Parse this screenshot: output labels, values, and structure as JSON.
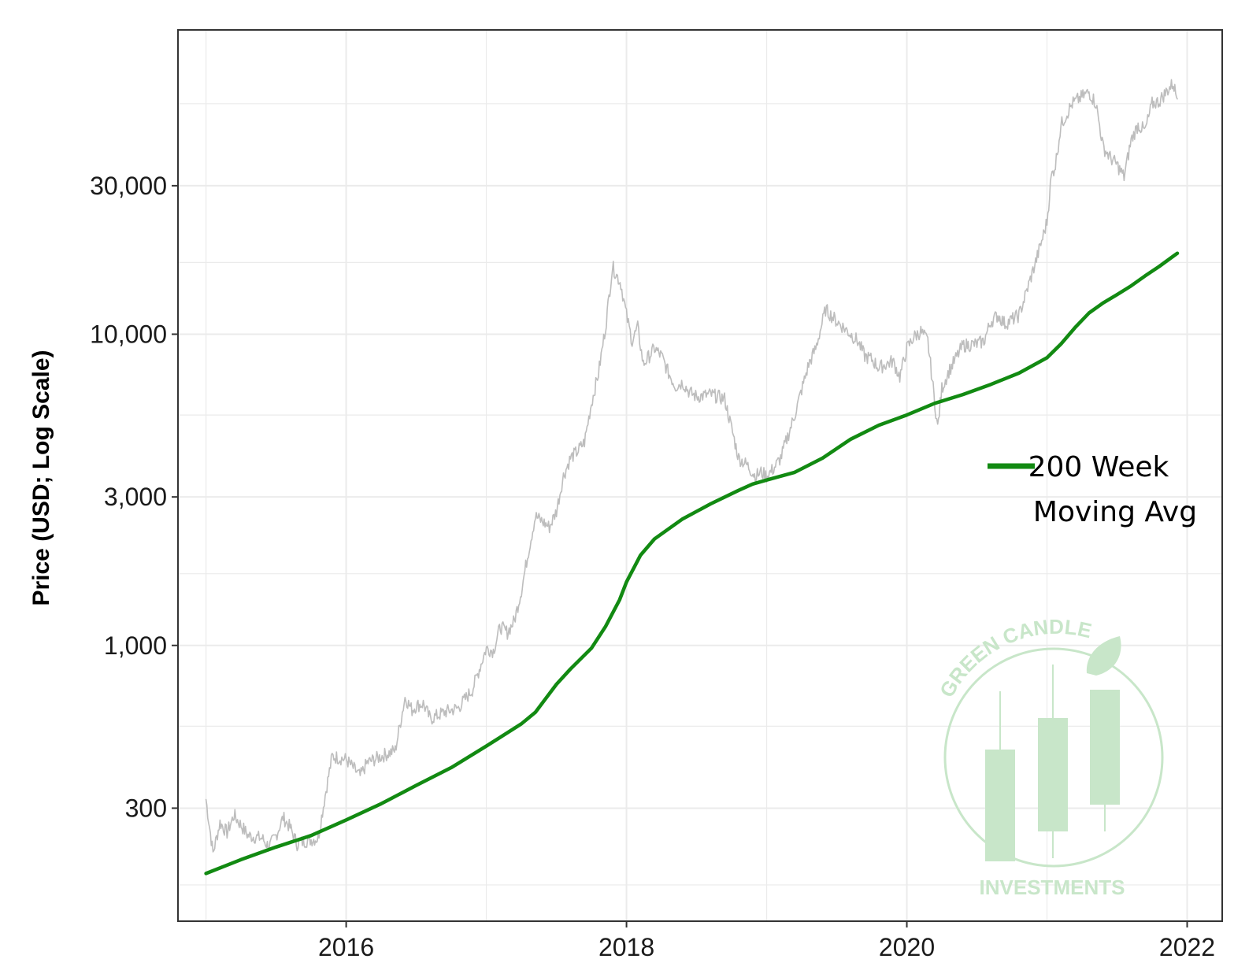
{
  "chart_data": {
    "type": "line",
    "title": "",
    "xlabel": "",
    "ylabel": "Price (USD; Log Scale)",
    "y_scale": "log",
    "x_range": [
      2014.8,
      2022.25
    ],
    "ylim": [
      130,
      95000
    ],
    "grid": true,
    "legend_placement": "right-middle",
    "x_ticks": [
      {
        "value": 2016,
        "label": "2016"
      },
      {
        "value": 2018,
        "label": "2018"
      },
      {
        "value": 2020,
        "label": "2020"
      },
      {
        "value": 2022,
        "label": "2022"
      }
    ],
    "y_ticks": [
      {
        "value": 300,
        "label": "300"
      },
      {
        "value": 1000,
        "label": "1,000"
      },
      {
        "value": 3000,
        "label": "3,000"
      },
      {
        "value": 10000,
        "label": "10,000"
      },
      {
        "value": 30000,
        "label": "30,000"
      }
    ],
    "y_minor_gridlines": [
      170,
      550,
      1700,
      5500,
      17000,
      55000
    ],
    "series": [
      {
        "key": "price",
        "color": "#bdbdbd",
        "x": [
          2015.0,
          2015.05,
          2015.1,
          2015.15,
          2015.2,
          2015.3,
          2015.4,
          2015.45,
          2015.5,
          2015.55,
          2015.6,
          2015.65,
          2015.7,
          2015.8,
          2015.85,
          2015.9,
          2016.0,
          2016.1,
          2016.15,
          2016.25,
          2016.35,
          2016.42,
          2016.47,
          2016.5,
          2016.55,
          2016.6,
          2016.7,
          2016.8,
          2016.9,
          2017.0,
          2017.05,
          2017.1,
          2017.15,
          2017.2,
          2017.25,
          2017.3,
          2017.35,
          2017.4,
          2017.45,
          2017.5,
          2017.55,
          2017.6,
          2017.65,
          2017.7,
          2017.75,
          2017.8,
          2017.85,
          2017.9,
          2017.96,
          2018.0,
          2018.04,
          2018.08,
          2018.12,
          2018.2,
          2018.25,
          2018.3,
          2018.35,
          2018.4,
          2018.45,
          2018.5,
          2018.6,
          2018.7,
          2018.8,
          2018.86,
          2018.92,
          2018.96,
          2019.0,
          2019.05,
          2019.1,
          2019.2,
          2019.3,
          2019.35,
          2019.42,
          2019.5,
          2019.55,
          2019.6,
          2019.65,
          2019.7,
          2019.75,
          2019.8,
          2019.85,
          2019.9,
          2019.95,
          2020.0,
          2020.05,
          2020.1,
          2020.15,
          2020.2,
          2020.22,
          2020.25,
          2020.3,
          2020.4,
          2020.5,
          2020.55,
          2020.6,
          2020.65,
          2020.7,
          2020.8,
          2020.85,
          2020.9,
          2020.95,
          2021.0,
          2021.03,
          2021.06,
          2021.1,
          2021.13,
          2021.18,
          2021.25,
          2021.3,
          2021.35,
          2021.4,
          2021.45,
          2021.5,
          2021.55,
          2021.6,
          2021.65,
          2021.7,
          2021.75,
          2021.8,
          2021.85,
          2021.9,
          2021.93
        ],
        "values": [
          320,
          215,
          270,
          250,
          285,
          245,
          240,
          225,
          245,
          280,
          260,
          230,
          235,
          240,
          330,
          440,
          430,
          380,
          420,
          440,
          460,
          680,
          620,
          640,
          650,
          580,
          610,
          630,
          720,
          980,
          960,
          1150,
          1100,
          1200,
          1500,
          2000,
          2600,
          2500,
          2400,
          2700,
          3500,
          4000,
          4200,
          4500,
          6000,
          7500,
          10500,
          16500,
          14500,
          11500,
          9500,
          10500,
          8000,
          9000,
          8500,
          7500,
          6800,
          7000,
          6500,
          6300,
          6400,
          6200,
          4000,
          3800,
          3500,
          3600,
          3500,
          3700,
          4000,
          5500,
          8000,
          9000,
          12000,
          11000,
          10500,
          10000,
          9500,
          8500,
          8300,
          7800,
          8000,
          8200,
          7300,
          9000,
          9800,
          10200,
          9500,
          6000,
          5000,
          6700,
          7600,
          9200,
          9300,
          9500,
          11000,
          11500,
          10800,
          11500,
          13500,
          16000,
          19000,
          23000,
          32000,
          35000,
          47000,
          50000,
          55000,
          58000,
          60000,
          55000,
          40000,
          37000,
          35000,
          32000,
          42000,
          47000,
          45000,
          55000,
          56000,
          60000,
          64000,
          57000
        ]
      },
      {
        "key": "ma200",
        "name": "200 Week\nMoving Avg",
        "color": "#128a12",
        "x": [
          2015.0,
          2015.25,
          2015.5,
          2015.75,
          2016.0,
          2016.25,
          2016.5,
          2016.75,
          2017.0,
          2017.25,
          2017.35,
          2017.5,
          2017.6,
          2017.75,
          2017.85,
          2017.95,
          2018.0,
          2018.1,
          2018.2,
          2018.4,
          2018.6,
          2018.8,
          2018.9,
          2019.0,
          2019.2,
          2019.4,
          2019.6,
          2019.8,
          2020.0,
          2020.2,
          2020.4,
          2020.6,
          2020.8,
          2021.0,
          2021.1,
          2021.2,
          2021.3,
          2021.4,
          2021.5,
          2021.6,
          2021.7,
          2021.8,
          2021.9,
          2021.93
        ],
        "values": [
          185,
          205,
          225,
          245,
          275,
          310,
          355,
          405,
          475,
          560,
          610,
          750,
          840,
          980,
          1150,
          1400,
          1600,
          1950,
          2200,
          2550,
          2850,
          3150,
          3300,
          3400,
          3600,
          4000,
          4600,
          5100,
          5500,
          6000,
          6400,
          6900,
          7500,
          8400,
          9300,
          10500,
          11700,
          12600,
          13400,
          14300,
          15400,
          16500,
          17800,
          18200
        ]
      }
    ]
  },
  "watermark": {
    "top_text": "GREEN CANDLE",
    "bottom_text": "INVESTMENTS",
    "color": "#c8e6c9"
  }
}
